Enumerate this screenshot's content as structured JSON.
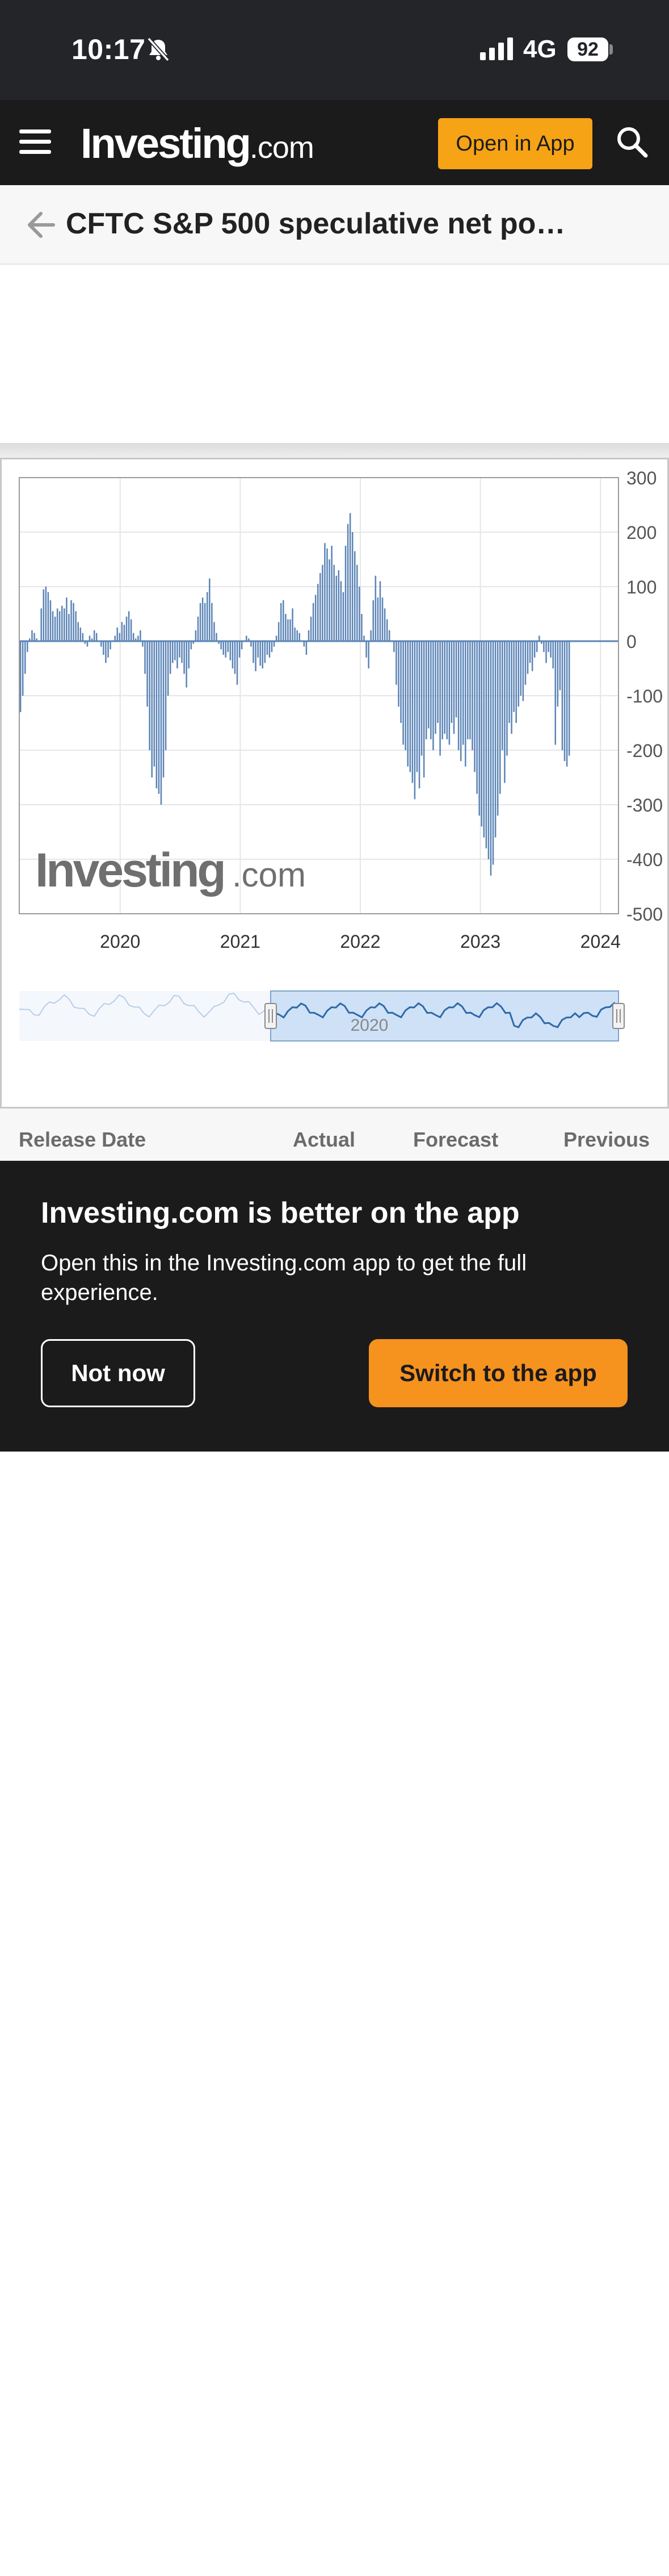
{
  "status_bar": {
    "time": "10:17",
    "network": "4G",
    "battery": "92"
  },
  "nav": {
    "logo_main": "Investing",
    "logo_suffix": ".com",
    "open_app_label": "Open in App"
  },
  "page": {
    "title": "CFTC S&P 500 speculative net po…"
  },
  "chart_data": {
    "type": "bar",
    "watermark": "Investing.com",
    "ylim": [
      -500,
      300
    ],
    "yticks": [
      300,
      200,
      100,
      0,
      -100,
      -200,
      -300,
      -400,
      -500
    ],
    "xticks": [
      "2020",
      "2021",
      "2022",
      "2023",
      "2024"
    ],
    "x_range": [
      2019.16,
      2024.15
    ],
    "x_tick_values": [
      2020.0,
      2021.0,
      2022.0,
      2023.0,
      2024.0
    ],
    "series": [
      {
        "start": 2019.17,
        "step": 0.0192,
        "values": [
          -130,
          -100,
          -60,
          -20,
          5,
          20,
          15,
          5,
          0,
          60,
          95,
          100,
          90,
          75,
          55,
          45,
          60,
          55,
          65,
          60,
          80,
          50,
          75,
          70,
          55,
          35,
          25,
          15,
          -5,
          -10,
          10,
          5,
          20,
          15,
          0,
          -10,
          -25,
          -40,
          -30,
          -15,
          0,
          10,
          25,
          15,
          35,
          30,
          45,
          55,
          40,
          15,
          5,
          10,
          20,
          -10,
          -60,
          -120,
          -200,
          -250,
          -230,
          -270,
          -280,
          -300,
          -250,
          -200,
          -100,
          -60,
          -40,
          -35,
          -50,
          -30,
          -40,
          -60,
          -85,
          -50,
          -15,
          -5,
          20,
          45,
          70,
          80,
          70,
          90,
          115,
          70,
          35,
          15,
          -5,
          -15,
          -25,
          -30,
          -20,
          -35,
          -50,
          -60,
          -80,
          -30,
          -15,
          0,
          10,
          5,
          -10,
          -40,
          -55,
          -30,
          -45,
          -50,
          -40,
          -25,
          -30,
          -20,
          -10,
          10,
          35,
          70,
          75,
          50,
          40,
          40,
          60,
          25,
          20,
          15,
          0,
          -10,
          -25,
          20,
          45,
          70,
          85,
          105,
          125,
          140,
          180,
          170,
          150,
          175,
          140,
          120,
          130,
          110,
          90,
          175,
          215,
          235,
          200,
          165,
          140,
          100,
          50,
          10,
          -30,
          -50,
          20,
          75,
          120,
          80,
          110,
          80,
          60,
          40,
          20,
          0,
          -20,
          -80,
          -120,
          -150,
          -190,
          -200,
          -230,
          -240,
          -260,
          -290,
          -240,
          -270,
          -210,
          -250,
          -180,
          -160,
          -180,
          -200,
          -170,
          -150,
          -210,
          -180,
          -170,
          -180,
          -190,
          -150,
          -170,
          -140,
          -200,
          -220,
          -190,
          -230,
          -180,
          -180,
          -200,
          -240,
          -280,
          -320,
          -340,
          -360,
          -380,
          -400,
          -430,
          -410,
          -360,
          -320,
          -280,
          -200,
          -260,
          -210,
          -150,
          -170,
          -130,
          -150,
          -120,
          -100,
          -110,
          -80,
          -60,
          -40,
          -55,
          -30,
          -20,
          10,
          -5,
          -20,
          -40,
          -20,
          -30,
          -50,
          -190,
          -120,
          -90,
          -200,
          -220,
          -230,
          -210
        ]
      }
    ]
  },
  "navigator": {
    "label": "2020"
  },
  "table": {
    "headers": [
      "Release Date",
      "Actual",
      "Forecast",
      "Previous"
    ]
  },
  "banner": {
    "title": "Investing.com is better on the app",
    "text": "Open this in the Investing.com app to get the full experience.",
    "not_now_label": "Not now",
    "switch_label": "Switch to the app"
  },
  "colors": {
    "bar": "#5b84b6",
    "accent": "#f6a316",
    "navigator_fill": "#cfe1f7",
    "navigator_line": "#2f6aa9"
  }
}
